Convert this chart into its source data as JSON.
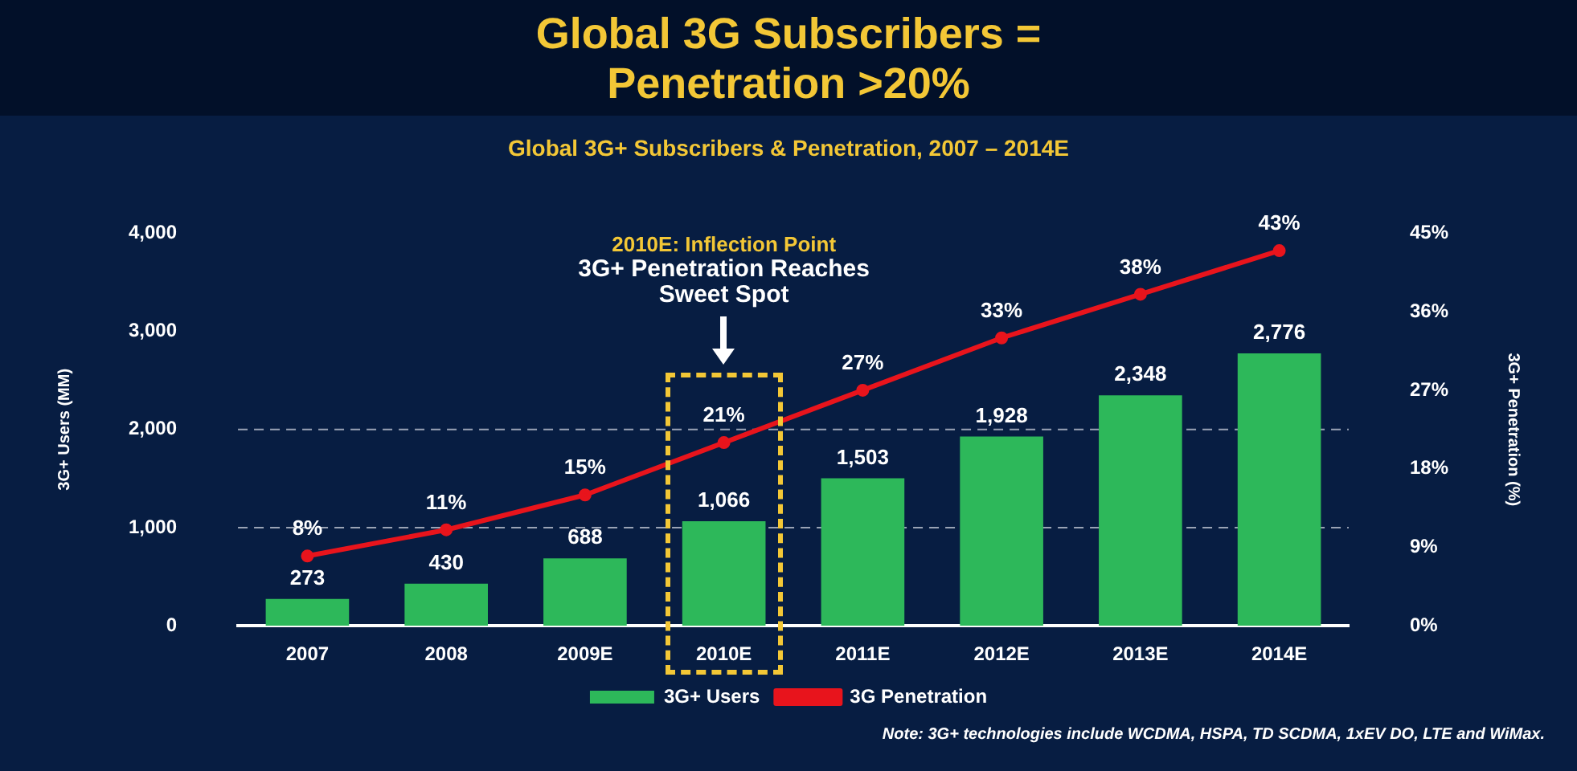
{
  "chart_data": {
    "type": "bar",
    "title": "Global 3G Subscribers = Penetration >20%",
    "subtitle": "Global 3G+ Subscribers & Penetration, 2007 – 2014E",
    "ylabel": "3G+ Users (MM)",
    "y2label": "3G+ Penetration (%)",
    "categories": [
      "2007",
      "2008",
      "2009E",
      "2010E",
      "2011E",
      "2012E",
      "2013E",
      "2014E"
    ],
    "series": [
      {
        "name": "3G+ Users",
        "color": "#2db85a",
        "values": [
          273,
          430,
          688,
          1066,
          1503,
          1928,
          2348,
          2776
        ],
        "value_labels": [
          "273",
          "430",
          "688",
          "1,066",
          "1,503",
          "1,928",
          "2,348",
          "2,776"
        ]
      },
      {
        "name": "3G Penetration",
        "type": "line",
        "axis": "y2",
        "color": "#e8141c",
        "values": [
          8,
          11,
          15,
          21,
          27,
          33,
          38,
          43
        ],
        "value_labels": [
          "8%",
          "11%",
          "15%",
          "21%",
          "27%",
          "33%",
          "38%",
          "43%"
        ]
      }
    ],
    "ylim": [
      0,
      4000
    ],
    "yticks": [
      {
        "value": 0,
        "label": "0"
      },
      {
        "value": 1000,
        "label": "1,000"
      },
      {
        "value": 2000,
        "label": "2,000"
      },
      {
        "value": 3000,
        "label": "3,000"
      },
      {
        "value": 4000,
        "label": "4,000"
      }
    ],
    "y2lim": [
      0,
      45
    ],
    "y2ticks": [
      {
        "value": 0,
        "label": "0%"
      },
      {
        "value": 9,
        "label": "9%"
      },
      {
        "value": 18,
        "label": "18%"
      },
      {
        "value": 27,
        "label": "27%"
      },
      {
        "value": 36,
        "label": "36%"
      },
      {
        "value": 45,
        "label": "45%"
      }
    ],
    "ref_lines": [
      {
        "axis": "y",
        "value": 1000,
        "color": "#9aa3b5",
        "line_style": "dashed"
      },
      {
        "axis": "y",
        "value": 2000,
        "color": "#9aa3b5",
        "line_style": "dashed"
      }
    ],
    "annotations": [
      "2010E: Inflection Point",
      "3G+ Penetration Reaches Sweet Spot",
      "Note: 3G+ technologies include WCDMA, HSPA, TD SCDMA, 1xEV DO, LTE and WiMax."
    ],
    "grid": false,
    "legend": "bottom",
    "marker": "circle",
    "line_style": "solid"
  }
}
